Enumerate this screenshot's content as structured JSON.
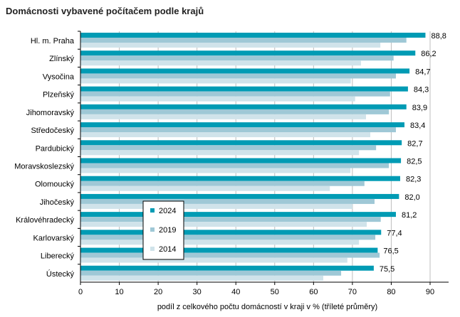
{
  "chart_data": {
    "type": "bar",
    "orientation": "horizontal",
    "title": "Domácnosti vybavené počítačem podle krajů",
    "xlabel": "podíl z celkového počtu domácností v kraji v % (tříleté průměry)",
    "ylabel": "",
    "xlim": [
      0,
      95
    ],
    "xticks": [
      0,
      10,
      20,
      30,
      40,
      50,
      60,
      70,
      80,
      90
    ],
    "grid": true,
    "legend_position": "bottom-left-inside",
    "categories": [
      "Hl. m. Praha",
      "Zlínský",
      "Vysočina",
      "Plzeňský",
      "Jihomoravský",
      "Středočeský",
      "Pardubický",
      "Moravskoslezský",
      "Olomoucký",
      "Jihočeský",
      "Královéhradecký",
      "Karlovarský",
      "Liberecký",
      "Ústecký"
    ],
    "series": [
      {
        "name": "2024",
        "color": "#009bb4",
        "values": [
          88.8,
          86.2,
          84.7,
          84.3,
          83.9,
          83.4,
          82.7,
          82.5,
          82.3,
          82.0,
          81.2,
          77.4,
          76.5,
          75.5
        ],
        "labels": [
          "88,8",
          "86,2",
          "84,7",
          "84,3",
          "83,9",
          "83,4",
          "82,7",
          "82,5",
          "82,3",
          "82,0",
          "81,2",
          "77,4",
          "76,5",
          "75,5"
        ]
      },
      {
        "name": "2019",
        "color": "#9fc8d6",
        "values": [
          83.9,
          80.6,
          81.2,
          79.7,
          79.4,
          81.2,
          76.1,
          79.4,
          73.1,
          75.7,
          77.3,
          75.9,
          77.0,
          67.1
        ]
      },
      {
        "name": "2014",
        "color": "#d0e3ea",
        "values": [
          77.2,
          72.2,
          69.6,
          70.7,
          73.5,
          74.6,
          71.7,
          69.5,
          64.2,
          70.0,
          73.7,
          71.7,
          68.7,
          62.5
        ]
      }
    ]
  }
}
